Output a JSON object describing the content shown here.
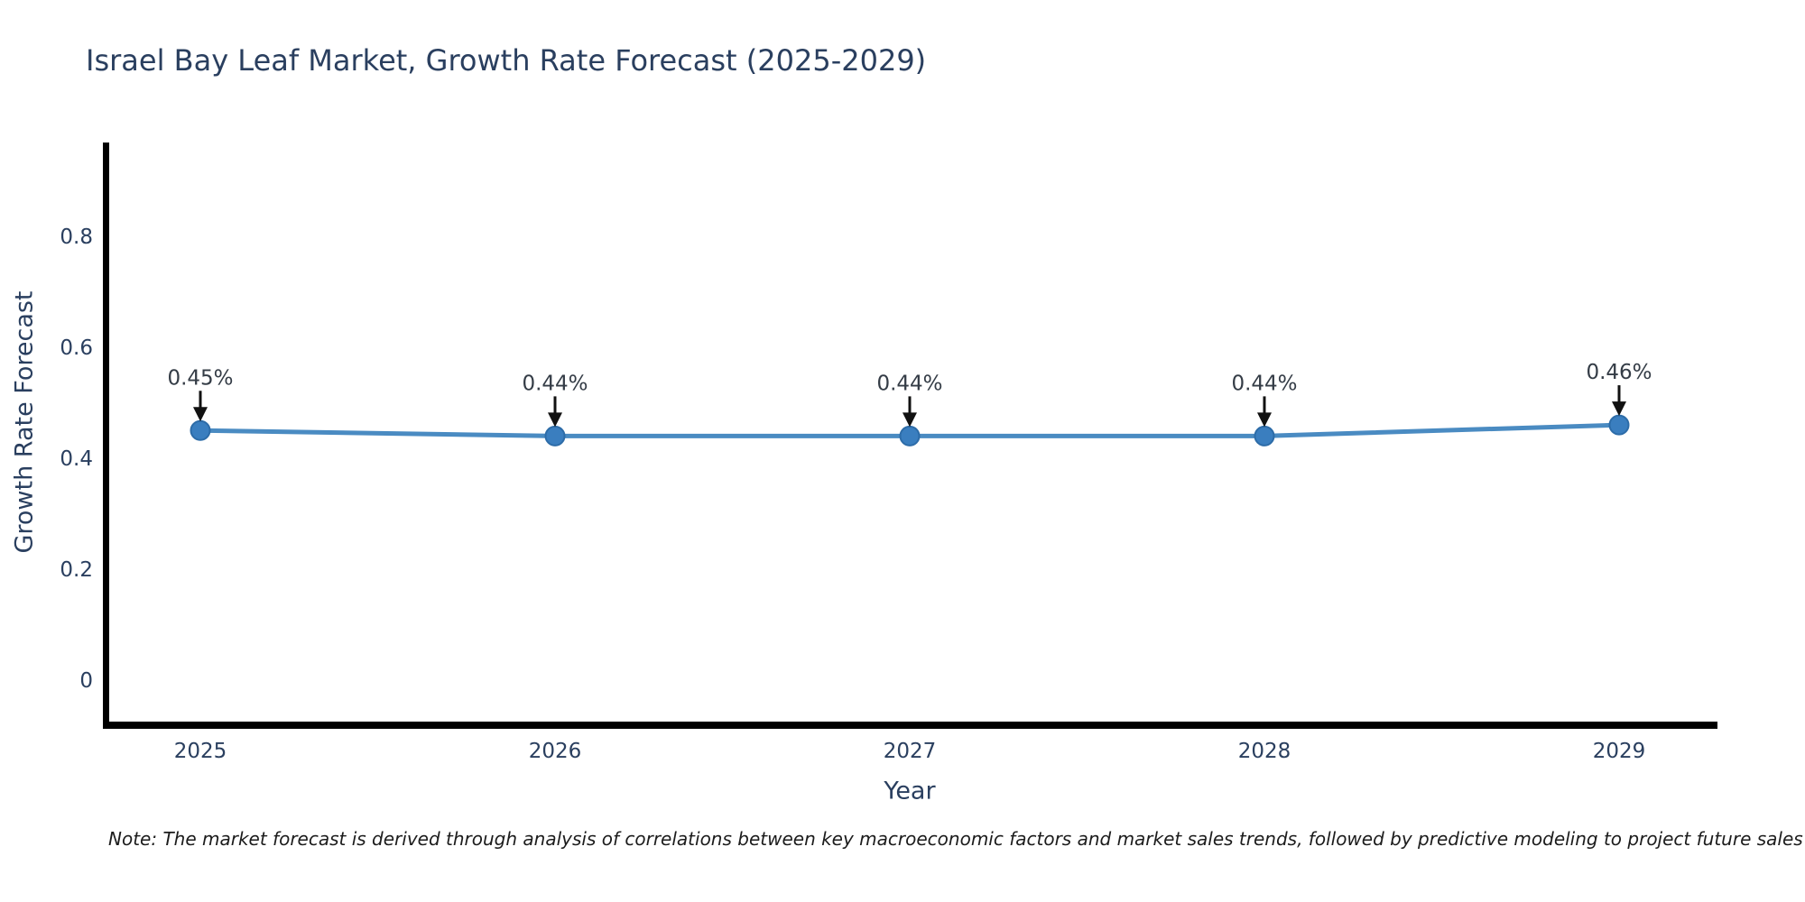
{
  "title": "Israel Bay Leaf Market, Growth Rate Forecast (2025-2029)",
  "note": "Note: The market forecast is derived through analysis of correlations between key macroeconomic factors and market sales trends, followed by predictive modeling to project future sales",
  "colors": {
    "title_text": "#2a3f5f",
    "tick_text": "#2a3f5f",
    "annotation_text": "#343c46",
    "axis_spine": "#000000",
    "line": "#4a8bc2",
    "marker_fill": "#3a7ebf",
    "marker_edge": "#2d6ca8",
    "arrow": "#111111",
    "background": "#ffffff"
  },
  "chart_data": {
    "type": "line",
    "title": "Israel Bay Leaf Market, Growth Rate Forecast (2025-2029)",
    "xlabel": "Year",
    "ylabel": "Growth Rate Forecast",
    "x": [
      2025,
      2026,
      2027,
      2028,
      2029
    ],
    "values": [
      0.45,
      0.44,
      0.44,
      0.44,
      0.46
    ],
    "annotations": [
      "0.45%",
      "0.44%",
      "0.44%",
      "0.44%",
      "0.46%"
    ],
    "yticks": [
      0,
      0.2,
      0.4,
      0.6,
      0.8
    ],
    "xticks": [
      "2025",
      "2026",
      "2027",
      "2028",
      "2029"
    ],
    "ylim": [
      -0.09,
      0.97
    ],
    "grid": false,
    "legend": false,
    "marker_style": "circle",
    "annotation_arrows": true
  }
}
